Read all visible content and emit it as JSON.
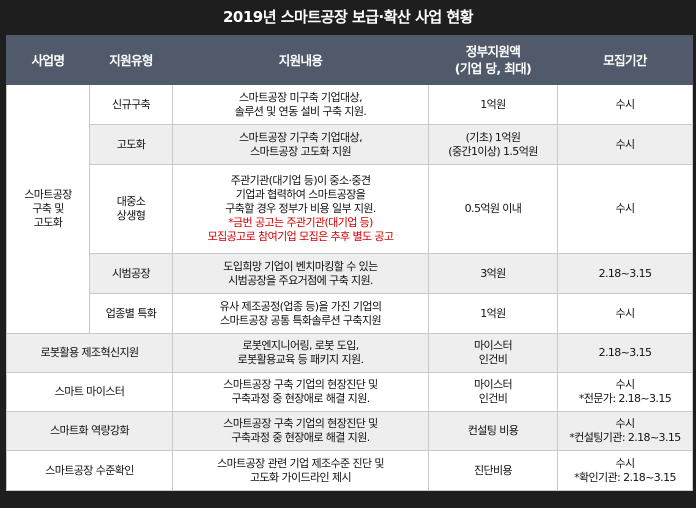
{
  "title": "2019년 스마트공장 보급·확산 사업 현황",
  "headers": {
    "business": "사업명",
    "support_type": "지원유형",
    "support_content": "지원내용",
    "amount_line1": "정부지원액",
    "amount_line2": "(기업 당, 최대)",
    "period": "모집기간"
  },
  "group": {
    "line1": "스마트공장",
    "line2": "구축 및",
    "line3": "고도화"
  },
  "rows": [
    {
      "type": "신규구축",
      "content": [
        "스마트공장 미구축 기업대상,",
        "솔루션 및 연동 설비 구축 지원."
      ],
      "amount": [
        "1억원"
      ],
      "period": [
        "수시"
      ]
    },
    {
      "type": "고도화",
      "content": [
        "스마트공장 기구축 기업대상,",
        "스마트공장 고도화 지원"
      ],
      "amount": [
        "(기초) 1억원",
        "(중간1이상) 1.5억원"
      ],
      "period": [
        "수시"
      ]
    },
    {
      "type_line1": "대중소",
      "type_line2": "상생형",
      "content": [
        "주관기관(대기업 등)이 중소·중견",
        "기업과 협력하여 스마트공장을",
        "구축할 경우 정부가 비용 일부 지원."
      ],
      "content_red": [
        "*금번 공고는 주관기관(대기업 등)",
        "모집공고로 참여기업 모집은 추후 별도 공고"
      ],
      "amount": [
        "0.5억원 이내"
      ],
      "period": [
        "수시"
      ]
    },
    {
      "type": "시범공장",
      "content": [
        "도입희망 기업이 벤치마킹할 수 있는",
        "시범공장을 주요거점에 구축 지원."
      ],
      "amount": [
        "3억원"
      ],
      "period": [
        "2.18~3.15"
      ]
    },
    {
      "type": "업종별 특화",
      "content": [
        "유사 제조공정(업종 등)을 가진 기업의",
        "스마트공장 공통 특화솔루션 구축지원"
      ],
      "amount": [
        "1억원"
      ],
      "period": [
        "수시"
      ]
    },
    {
      "name": "로봇활용 제조혁신지원",
      "content": [
        "로봇엔지니어링, 로봇 도입,",
        "로봇활용교육 등 패키지 지원."
      ],
      "amount": [
        "마이스터",
        "인건비"
      ],
      "period": [
        "2.18~3.15"
      ]
    },
    {
      "name": "스마트 마이스터",
      "content": [
        "스마트공장 구축 기업의 현장진단 및",
        "구축과정 중 현장애로 해결 지원."
      ],
      "amount": [
        "마이스터",
        "인건비"
      ],
      "period": [
        "수시",
        "*전문가: 2.18~3.15"
      ]
    },
    {
      "name": "스마트화 역량강화",
      "content": [
        "스마트공장 구축 기업의 현장진단 및",
        "구축과정 중 현장애로 해결 지원."
      ],
      "amount": [
        "컨설팅 비용"
      ],
      "period": [
        "수시",
        "*컨설팅기관: 2.18~3.15"
      ]
    },
    {
      "name": "스마트공장 수준확인",
      "content": [
        "스마트공장 관련 기업 제조수준 진단 및",
        "고도화 가이드라인 제시"
      ],
      "amount": [
        "진단비용"
      ],
      "period": [
        "수시",
        "*확인기관: 2.18~3.15"
      ]
    }
  ]
}
